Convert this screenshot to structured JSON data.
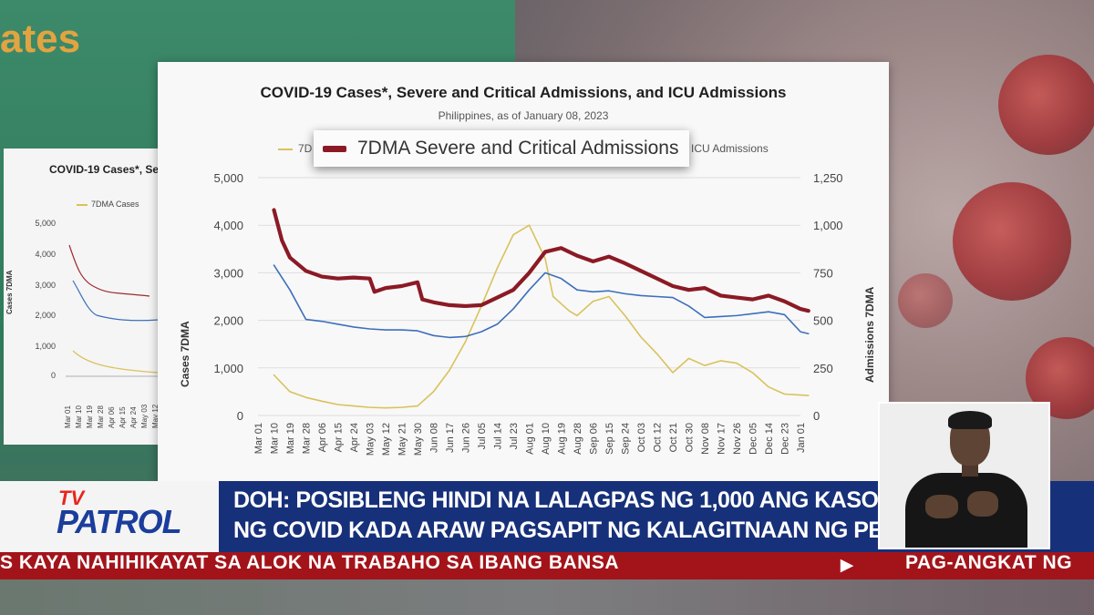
{
  "background": {
    "title_fragment": "ates"
  },
  "mini_chart": {
    "title": "COVID-19 Cases*, Se",
    "legend_label": "7DMA Cases",
    "y_axis_label": "Cases 7DMA",
    "y_ticks": [
      "5,000",
      "4,000",
      "3,000",
      "2,000",
      "1,000",
      "0"
    ],
    "x_ticks": [
      "Mar 01",
      "Mar 10",
      "Mar 19",
      "Mar 28",
      "Apr 06",
      "Apr 15",
      "Apr 24",
      "May 03",
      "May 12",
      "May 21"
    ]
  },
  "chart": {
    "title": "COVID-19 Cases*, Severe and Critical Admissions, and ICU Admissions",
    "subtitle": "Philippines, as of January 08, 2023",
    "legend_left_fragment": "7D",
    "legend_right_fragment": "ICU Admissions",
    "legend_zoom_label": "7DMA Severe and Critical Admissions",
    "y_left_title": "Cases 7DMA",
    "y_right_title": "Admissions 7DMA"
  },
  "chart_data": {
    "type": "line",
    "title": "COVID-19 Cases*, Severe and Critical Admissions, and ICU Admissions",
    "subtitle": "Philippines, as of January 08, 2023",
    "ylabel": "Cases 7DMA",
    "y2label": "Admissions 7DMA",
    "ylim": [
      0,
      5000
    ],
    "y2lim": [
      0,
      1250
    ],
    "y_ticks": [
      "5,000",
      "4,000",
      "3,000",
      "2,000",
      "1,000",
      "0"
    ],
    "y2_ticks": [
      "1,250",
      "1,000",
      "750",
      "500",
      "250",
      "0"
    ],
    "grid": true,
    "x_ticks": [
      "Mar 01",
      "Mar 10",
      "Mar 19",
      "Mar 28",
      "Apr 06",
      "Apr 15",
      "Apr 24",
      "May 03",
      "May 12",
      "May 21",
      "May 30",
      "Jun 08",
      "Jun 17",
      "Jun 26",
      "Jul 05",
      "Jul 14",
      "Jul 23",
      "Aug 01",
      "Aug 10",
      "Aug 19",
      "Aug 28",
      "Sep 06",
      "Sep 15",
      "Sep 24",
      "Oct 03",
      "Oct 12",
      "Oct 21",
      "Oct 30",
      "Nov 08",
      "Nov 17",
      "Nov 26",
      "Dec 05",
      "Dec 14",
      "Dec 23",
      "Jan 01"
    ],
    "series": [
      {
        "name": "7DMA Cases",
        "axis": "left",
        "color": "#d9c25b",
        "x": [
          1,
          2,
          3,
          4,
          5,
          6,
          7,
          8,
          9,
          10,
          11,
          12,
          13,
          14,
          15,
          16,
          17,
          18,
          18.5,
          19,
          19.5,
          20,
          21,
          22,
          23,
          24,
          25,
          26,
          27,
          28,
          29,
          30,
          31,
          32,
          33,
          34,
          34.5
        ],
        "values": [
          850,
          500,
          380,
          300,
          230,
          200,
          170,
          160,
          170,
          200,
          500,
          950,
          1550,
          2300,
          3100,
          3800,
          4000,
          3300,
          2500,
          2350,
          2200,
          2100,
          2400,
          2500,
          2100,
          1650,
          1300,
          900,
          1200,
          1050,
          1150,
          1100,
          900,
          600,
          450,
          430,
          420
        ]
      },
      {
        "name": "7DMA Severe and Critical Admissions",
        "axis": "right",
        "color": "#8b1a25",
        "x": [
          1,
          1.5,
          2,
          3,
          4,
          5,
          6,
          7,
          7.3,
          8,
          9,
          10,
          10.3,
          11,
          12,
          13,
          14,
          15,
          16,
          17,
          18,
          19,
          20,
          21,
          22,
          23,
          24,
          25,
          26,
          27,
          28,
          29,
          30,
          31,
          32,
          33,
          34,
          34.5
        ],
        "values": [
          1080,
          920,
          830,
          760,
          730,
          720,
          725,
          720,
          650,
          670,
          680,
          700,
          610,
          595,
          580,
          575,
          580,
          620,
          660,
          750,
          860,
          880,
          840,
          810,
          835,
          800,
          760,
          720,
          680,
          660,
          670,
          630,
          620,
          610,
          630,
          600,
          560,
          550
        ]
      },
      {
        "name": "ICU Admissions",
        "axis": "right",
        "color": "#3d6fba",
        "x": [
          1,
          2,
          3,
          4,
          5,
          6,
          7,
          8,
          9,
          10,
          11,
          12,
          13,
          14,
          15,
          16,
          17,
          18,
          19,
          20,
          21,
          22,
          23,
          24,
          25,
          26,
          27,
          28,
          29,
          30,
          31,
          32,
          33,
          34,
          34.5
        ],
        "values": [
          790,
          660,
          505,
          495,
          480,
          465,
          455,
          450,
          450,
          445,
          420,
          410,
          415,
          440,
          480,
          560,
          660,
          750,
          720,
          660,
          650,
          655,
          640,
          630,
          625,
          620,
          575,
          515,
          520,
          525,
          535,
          545,
          530,
          440,
          430
        ]
      }
    ]
  },
  "lower_third": {
    "logo_tv": "TV",
    "logo_patrol": "PATROL",
    "headline_line1": "DOH: POSIBLENG HINDI NA LALAGPAS NG 1,000 ANG KASO",
    "headline_line2": "NG COVID KADA ARAW PAGSAPIT NG KALAGITNAAN NG PEBRERO",
    "ticker_left": "S KAYA NAHIHIKAYAT SA ALOK NA TRABAHO SA IBANG BANSA",
    "ticker_icon": "play-icon",
    "ticker_right": "PAG-ANGKAT NG"
  },
  "colors": {
    "accent_blue": "#17307a",
    "ticker_red": "#a3141a",
    "title_orange": "#e2a441"
  }
}
